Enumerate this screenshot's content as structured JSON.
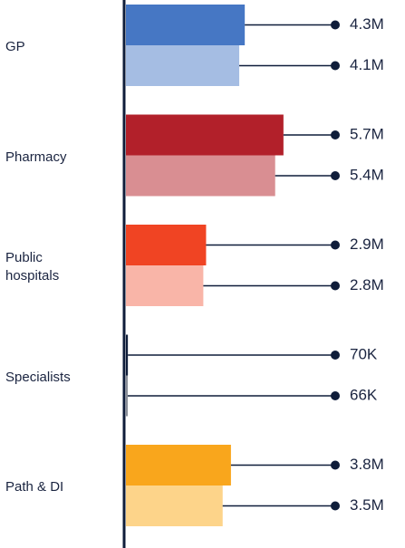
{
  "chart_data": {
    "type": "bar",
    "orientation": "horizontal",
    "categories": [
      "GP",
      "Pharmacy",
      "Public hospitals",
      "Specialists",
      "Path & DI"
    ],
    "series": [
      {
        "values": [
          4300000,
          5700000,
          2900000,
          70000,
          3800000
        ],
        "value_labels": [
          "4.3M",
          "5.7M",
          "2.9M",
          "70K",
          "3.8M"
        ],
        "colors": [
          "#4677c4",
          "#b2202a",
          "#f04423",
          "#0f1d3a",
          "#f9a61c"
        ]
      },
      {
        "values": [
          4100000,
          5400000,
          2800000,
          66000,
          3500000
        ],
        "value_labels": [
          "4.1M",
          "5.4M",
          "2.8M",
          "66K",
          "3.5M"
        ],
        "colors": [
          "#a5bde3",
          "#d98e92",
          "#f9b5a8",
          "#8a8f99",
          "#fdd48a"
        ]
      }
    ]
  }
}
